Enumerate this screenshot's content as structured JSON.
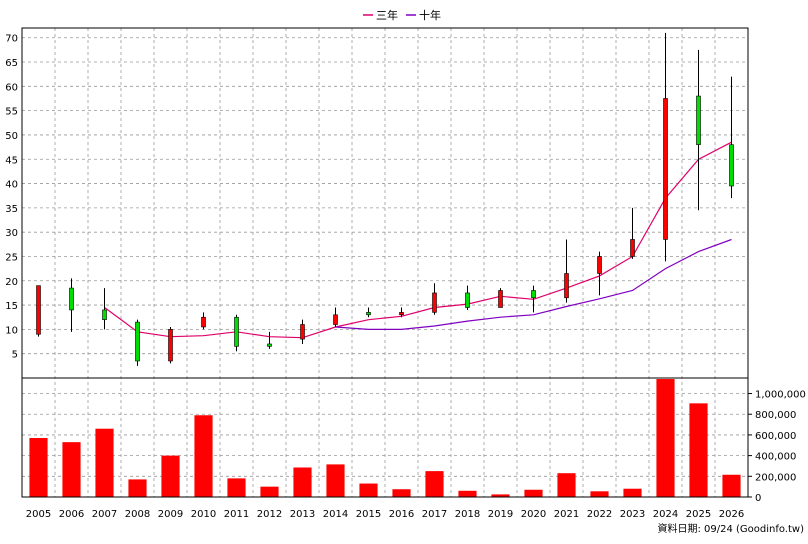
{
  "legend": {
    "three_year": "三年",
    "ten_year": "十年"
  },
  "colors": {
    "up": "#ff0000",
    "down": "#00dd00",
    "three_year": "#e0006a",
    "ten_year": "#8000c0",
    "volume": "#ff0000",
    "grid": "#999999"
  },
  "footer": {
    "text": "資料日期: 09/24 (Goodinfo.tw)"
  },
  "chart_data": [
    {
      "type": "candlestick",
      "title": "",
      "ylim": [
        0,
        72
      ],
      "y_ticks": [
        5,
        10,
        15,
        20,
        25,
        30,
        35,
        40,
        45,
        50,
        55,
        60,
        65,
        70
      ],
      "categories": [
        "2005",
        "2006",
        "2007",
        "2008",
        "2009",
        "2010",
        "2011",
        "2012",
        "2013",
        "2014",
        "2015",
        "2016",
        "2017",
        "2018",
        "2019",
        "2020",
        "2021",
        "2022",
        "2023",
        "2024",
        "2025",
        "2026"
      ],
      "candles": [
        {
          "open": 9.0,
          "close": 19.0,
          "high": 19.0,
          "low": 8.5
        },
        {
          "open": 18.5,
          "close": 14.0,
          "high": 20.5,
          "low": 9.5
        },
        {
          "open": 14.0,
          "close": 12.0,
          "high": 18.5,
          "low": 10.0
        },
        {
          "open": 11.5,
          "close": 3.5,
          "high": 12.0,
          "low": 2.5
        },
        {
          "open": 3.5,
          "close": 10.0,
          "high": 10.5,
          "low": 3.0
        },
        {
          "open": 10.5,
          "close": 12.5,
          "high": 13.5,
          "low": 10.0
        },
        {
          "open": 12.5,
          "close": 6.5,
          "high": 13.0,
          "low": 5.5
        },
        {
          "open": 7.0,
          "close": 6.5,
          "high": 9.5,
          "low": 6.0
        },
        {
          "open": 8.0,
          "close": 11.0,
          "high": 12.0,
          "low": 7.0
        },
        {
          "open": 11.0,
          "close": 13.0,
          "high": 14.5,
          "low": 10.5
        },
        {
          "open": 13.5,
          "close": 13.0,
          "high": 14.5,
          "low": 12.5
        },
        {
          "open": 13.0,
          "close": 13.5,
          "high": 14.5,
          "low": 12.5
        },
        {
          "open": 13.5,
          "close": 17.5,
          "high": 19.5,
          "low": 13.0
        },
        {
          "open": 17.5,
          "close": 14.5,
          "high": 19.0,
          "low": 14.0
        },
        {
          "open": 14.5,
          "close": 18.0,
          "high": 18.5,
          "low": 14.5
        },
        {
          "open": 18.0,
          "close": 16.5,
          "high": 19.0,
          "low": 13.5
        },
        {
          "open": 16.5,
          "close": 21.5,
          "high": 28.5,
          "low": 15.5
        },
        {
          "open": 21.5,
          "close": 25.0,
          "high": 26.0,
          "low": 17.0
        },
        {
          "open": 25.0,
          "close": 28.5,
          "high": 35.0,
          "low": 24.5
        },
        {
          "open": 28.5,
          "close": 57.5,
          "high": 71.0,
          "low": 24.0
        },
        {
          "open": 58.0,
          "close": 48.0,
          "high": 67.5,
          "low": 34.5
        },
        {
          "open": 48.0,
          "close": 39.5,
          "high": 62.0,
          "low": 37.0
        }
      ],
      "series": [
        {
          "name": "三年",
          "values": [
            null,
            null,
            14.5,
            9.5,
            8.5,
            8.7,
            9.5,
            8.5,
            8.3,
            10.5,
            12.0,
            12.7,
            14.5,
            15.2,
            16.8,
            16.2,
            18.5,
            21.0,
            25.0,
            37.0,
            45.0,
            48.5
          ]
        },
        {
          "name": "十年",
          "values": [
            null,
            null,
            null,
            null,
            null,
            null,
            null,
            null,
            null,
            10.5,
            10.0,
            10.0,
            10.7,
            11.7,
            12.5,
            13.0,
            14.7,
            16.3,
            18.0,
            22.5,
            26.0,
            28.5
          ]
        }
      ]
    },
    {
      "type": "bar",
      "title": "",
      "ylim": [
        0,
        1150000
      ],
      "y_ticks": [
        0,
        200000,
        400000,
        600000,
        800000,
        1000000
      ],
      "y_tick_labels": [
        "0",
        "200,000",
        "400,000",
        "600,000",
        "800,000",
        "1,000,000"
      ],
      "categories": [
        "2005",
        "2006",
        "2007",
        "2008",
        "2009",
        "2010",
        "2011",
        "2012",
        "2013",
        "2014",
        "2015",
        "2016",
        "2017",
        "2018",
        "2019",
        "2020",
        "2021",
        "2022",
        "2023",
        "2024",
        "2025",
        "2026"
      ],
      "values": [
        570000,
        530000,
        660000,
        170000,
        400000,
        790000,
        180000,
        100000,
        285000,
        315000,
        130000,
        75000,
        250000,
        60000,
        25000,
        70000,
        230000,
        55000,
        80000,
        1140000,
        905000,
        215000
      ]
    }
  ]
}
